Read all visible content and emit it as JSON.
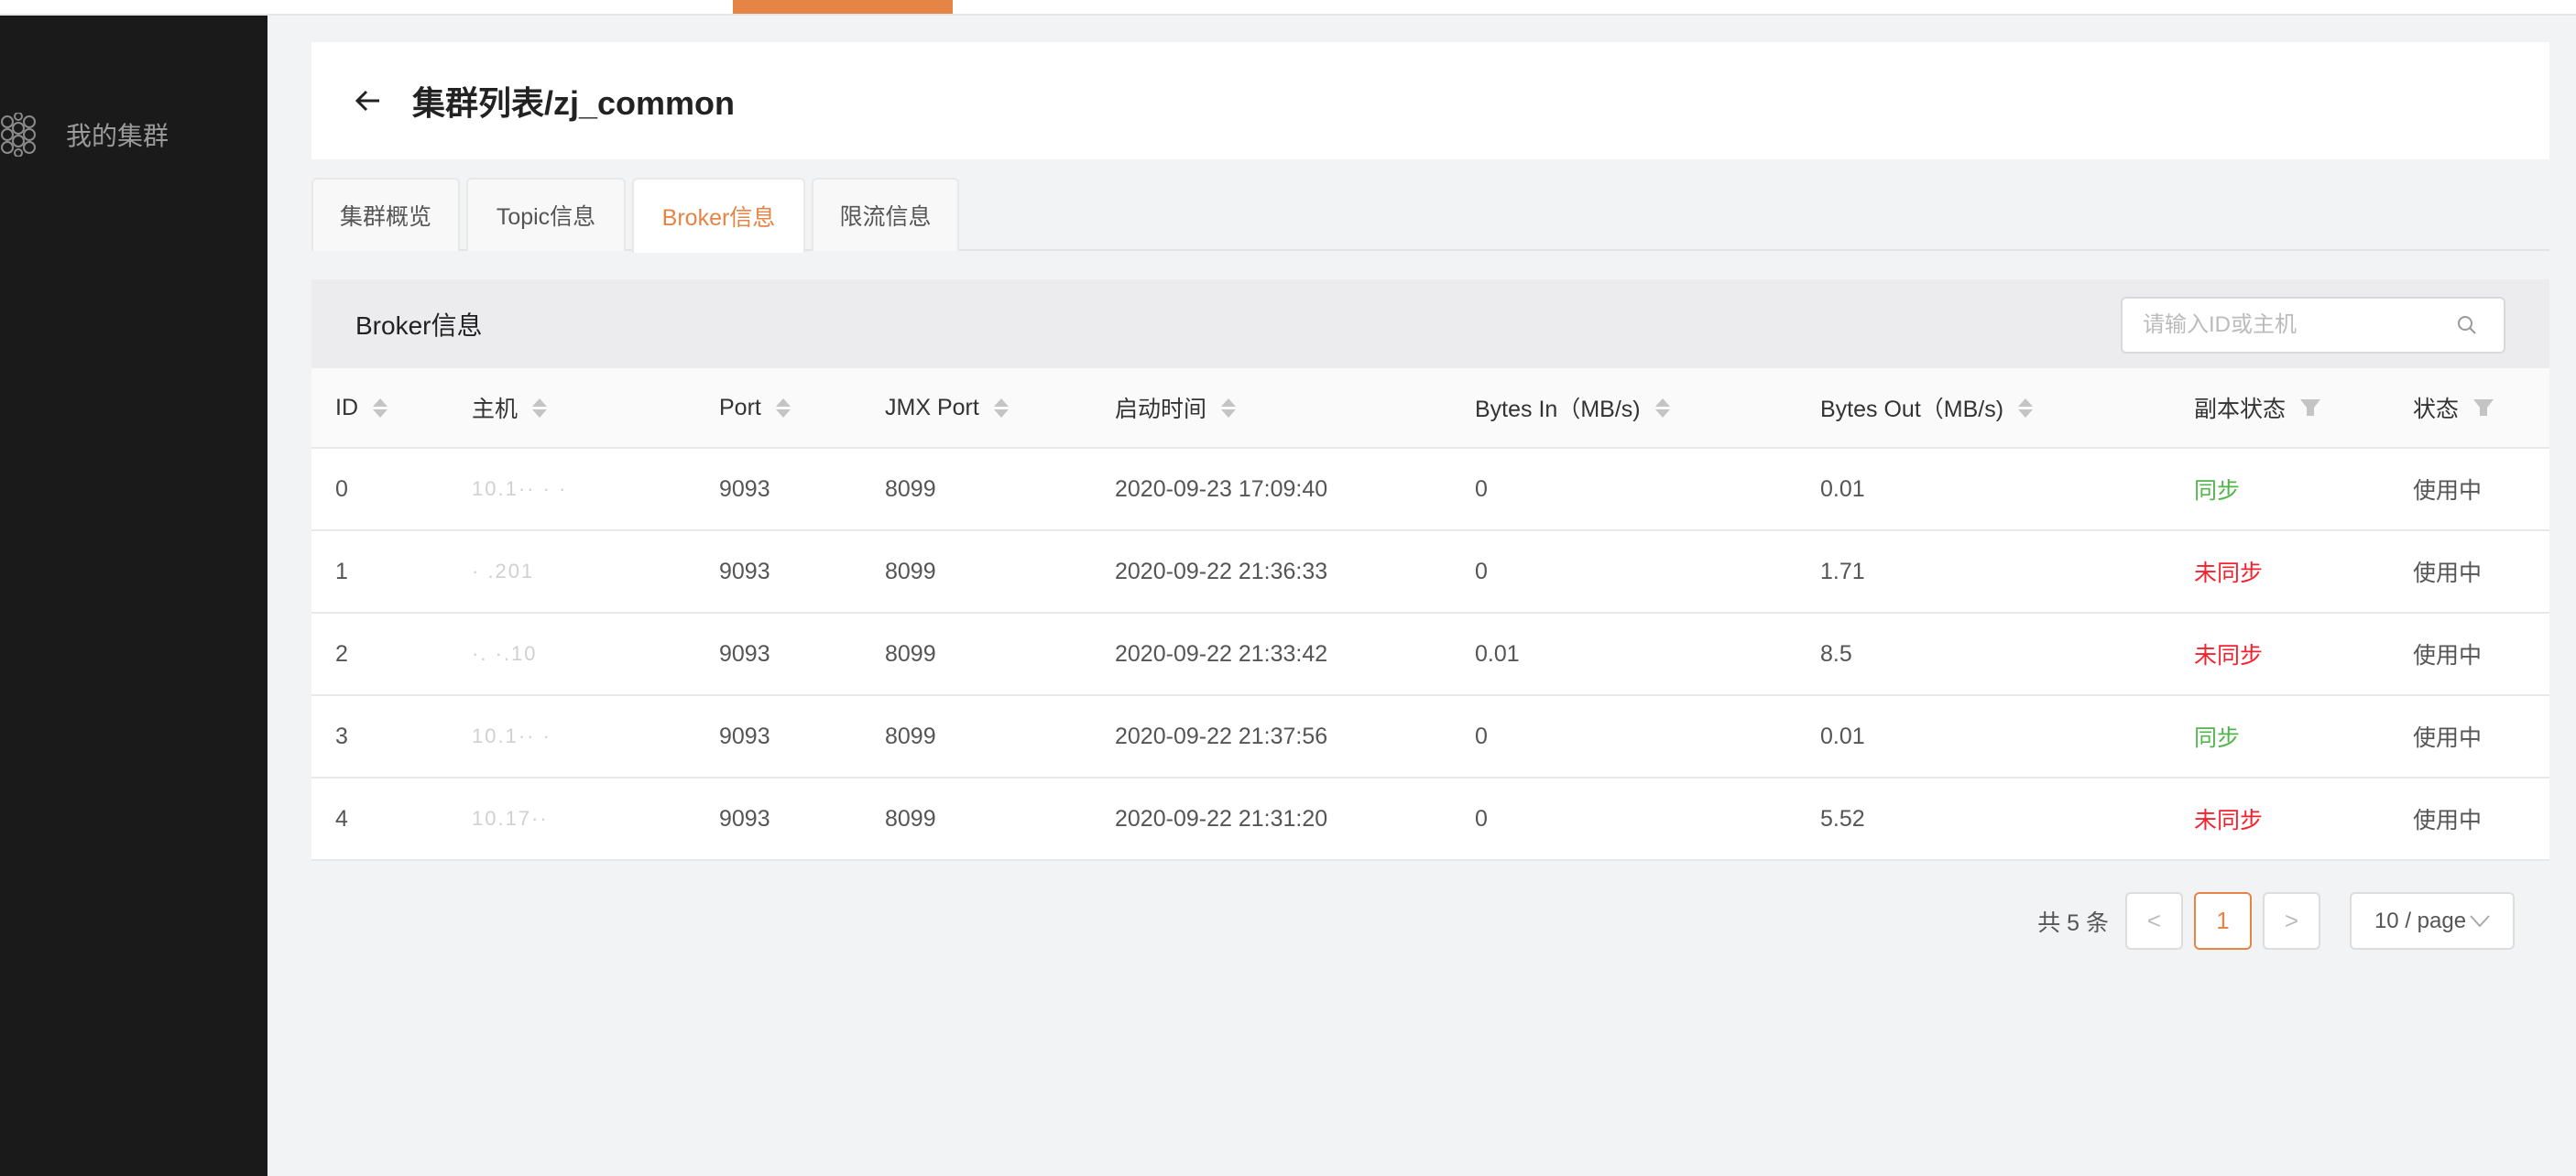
{
  "colors": {
    "accent": "#e58445",
    "sync": "#52b44b",
    "unsync": "#f5222d",
    "sidebar": "#1a1a1a"
  },
  "sidebar": {
    "items": [
      {
        "label": "我的集群",
        "icon": "hexagon-cluster-icon"
      }
    ]
  },
  "header": {
    "title": "集群列表/zj_common",
    "back_icon": "arrow-left-icon"
  },
  "tabs": [
    {
      "label": "集群概览"
    },
    {
      "label": "Topic信息"
    },
    {
      "label": "Broker信息",
      "active": true
    },
    {
      "label": "限流信息"
    }
  ],
  "panel": {
    "title": "Broker信息",
    "search_placeholder": "请输入ID或主机",
    "search_value": ""
  },
  "table": {
    "columns": [
      "ID",
      "主机",
      "Port",
      "JMX Port",
      "启动时间",
      "Bytes In（MB/s)",
      "Bytes Out（MB/s)",
      "副本状态",
      "状态"
    ],
    "rows": [
      {
        "id": "0",
        "host": "10.1·· ·      ·",
        "port": "9093",
        "jmx": "8099",
        "start": "2020-09-23 17:09:40",
        "in": "0",
        "out": "0.01",
        "replica": "同步",
        "replica_ok": true,
        "status": "使用中"
      },
      {
        "id": "1",
        "host": "·        .201",
        "port": "9093",
        "jmx": "8099",
        "start": "2020-09-22 21:36:33",
        "in": "0",
        "out": "1.71",
        "replica": "未同步",
        "replica_ok": false,
        "status": "使用中"
      },
      {
        "id": "2",
        "host": "·.      ·.10",
        "port": "9093",
        "jmx": "8099",
        "start": "2020-09-22 21:33:42",
        "in": "0.01",
        "out": "8.5",
        "replica": "未同步",
        "replica_ok": false,
        "status": "使用中"
      },
      {
        "id": "3",
        "host": "10.1·· ·",
        "port": "9093",
        "jmx": "8099",
        "start": "2020-09-22 21:37:56",
        "in": "0",
        "out": "0.01",
        "replica": "同步",
        "replica_ok": true,
        "status": "使用中"
      },
      {
        "id": "4",
        "host": "10.17··",
        "port": "9093",
        "jmx": "8099",
        "start": "2020-09-22 21:31:20",
        "in": "0",
        "out": "5.52",
        "replica": "未同步",
        "replica_ok": false,
        "status": "使用中"
      }
    ]
  },
  "pagination": {
    "total": "共 5 条",
    "prev": "<",
    "current": "1",
    "next": ">",
    "page_size": "10 / page"
  }
}
